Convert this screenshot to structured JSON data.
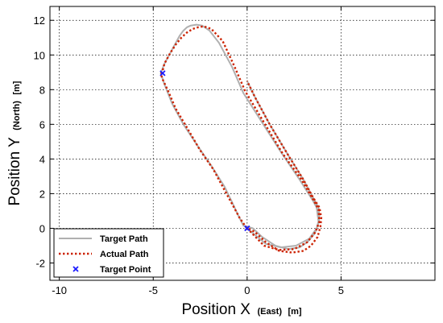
{
  "chart_data": {
    "type": "line",
    "xlabel": "Position X",
    "xlabel_qualifier": "(East)",
    "xlabel_unit": "[m]",
    "ylabel": "Position Y",
    "ylabel_qualifier": "(North)",
    "ylabel_unit": "[m]",
    "xlim": [
      -10.5,
      10
    ],
    "ylim": [
      -3,
      12.8
    ],
    "xticks": [
      -10,
      -5,
      0,
      5
    ],
    "yticks": [
      -2,
      0,
      2,
      4,
      6,
      8,
      10,
      12
    ],
    "grid": true,
    "legend_position": "bottom-left",
    "series": [
      {
        "name": "Target Path",
        "style": "solid",
        "color": "#b0b0b0",
        "x": [
          0,
          1.0,
          1.8,
          2.6,
          3.3,
          3.7,
          3.8,
          3.7,
          3.5,
          2.8,
          1.8,
          0.8,
          -0.2,
          -0.8,
          -1.5,
          -2.0,
          -2.4,
          -2.7,
          -3.0,
          -3.2,
          -3.4,
          -3.6,
          -3.8,
          -4.1,
          -4.4,
          -4.6,
          -4.6,
          -4.4,
          -4.0,
          -3.4,
          -2.6,
          -1.9,
          -1.2,
          -0.8,
          -0.5,
          -0.2,
          0.3,
          0.8,
          1.5,
          2.2,
          2.8,
          3.2,
          3.6,
          3.8,
          3.85,
          3.8,
          3.5,
          3.0,
          2.2,
          1.2,
          0.4,
          0
        ],
        "y": [
          0,
          -0.9,
          -1.1,
          -1.0,
          -0.6,
          0,
          0.4,
          1.2,
          1.6,
          2.8,
          4.4,
          6.1,
          7.8,
          9.3,
          10.7,
          11.4,
          11.7,
          11.75,
          11.7,
          11.6,
          11.4,
          11.1,
          10.7,
          10.1,
          9.5,
          8.95,
          8.95,
          8.3,
          7.2,
          6.0,
          4.7,
          3.6,
          2.4,
          1.5,
          0.8,
          0.15,
          0.0,
          -0.5,
          -1.0,
          -1.2,
          -1.1,
          -0.8,
          -0.3,
          0.3,
          0.6,
          1.2,
          1.8,
          2.8,
          4.2,
          6.0,
          7.6,
          8.5
        ]
      },
      {
        "name": "Actual Path",
        "style": "dotted",
        "color": "#cc2200",
        "x": [
          0,
          0.9,
          1.7,
          2.5,
          3.2,
          3.65,
          3.85,
          3.8,
          3.55,
          2.9,
          1.9,
          0.9,
          -0.1,
          -0.7,
          -1.3,
          -1.9,
          -2.3,
          -2.6,
          -2.9,
          -3.2,
          -3.5,
          -3.8,
          -4.1,
          -4.4,
          -4.5,
          -4.6,
          -4.5,
          -4.2,
          -3.8,
          -3.2,
          -2.5,
          -1.8,
          -1.2,
          -0.8,
          -0.4,
          -0.05,
          0.4,
          1.0,
          1.7,
          2.4,
          3.0,
          3.4,
          3.75,
          3.9,
          3.95,
          3.85,
          3.5,
          3.0,
          2.2,
          1.2,
          0.4,
          0
        ],
        "y": [
          0,
          -1.0,
          -1.25,
          -1.2,
          -0.8,
          -0.2,
          0.4,
          1.1,
          1.6,
          2.8,
          4.3,
          6.1,
          7.9,
          9.4,
          10.8,
          11.5,
          11.65,
          11.6,
          11.5,
          11.3,
          11.0,
          10.6,
          10.1,
          9.5,
          9.1,
          8.9,
          8.6,
          7.9,
          6.9,
          5.8,
          4.5,
          3.4,
          2.2,
          1.4,
          0.6,
          0.05,
          -0.2,
          -0.8,
          -1.3,
          -1.4,
          -1.3,
          -1.0,
          -0.5,
          0.1,
          0.6,
          1.2,
          1.8,
          2.8,
          4.2,
          6.0,
          7.6,
          8.5
        ]
      },
      {
        "name": "Target Point",
        "style": "marker",
        "color": "#1a1aff",
        "x": [
          -4.5,
          0
        ],
        "y": [
          8.95,
          0
        ]
      }
    ]
  }
}
